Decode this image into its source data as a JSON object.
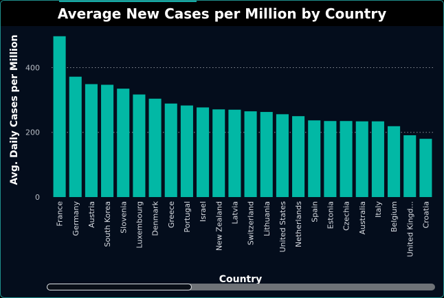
{
  "chart_data": {
    "type": "bar",
    "title": "Average New Cases per Million by Country",
    "xlabel": "Country",
    "ylabel": "Avg. Daily Cases per Million",
    "categories": [
      "France",
      "Germany",
      "Austria",
      "South Korea",
      "Slovenia",
      "Luxembourg",
      "Denmark",
      "Greece",
      "Portugal",
      "Israel",
      "New Zealand",
      "Latvia",
      "Switzerland",
      "Lithuania",
      "United States",
      "Netherlands",
      "Spain",
      "Estonia",
      "Czechia",
      "Australia",
      "Italy",
      "Belgium",
      "United Kingd...",
      "Croatia"
    ],
    "values": [
      497,
      372,
      349,
      347,
      335,
      317,
      304,
      289,
      283,
      277,
      271,
      270,
      265,
      263,
      256,
      250,
      237,
      235,
      235,
      234,
      234,
      219,
      191,
      180
    ],
    "ylim": [
      0,
      505
    ],
    "yticks": [
      0,
      200,
      400
    ],
    "grid": true,
    "bar_color": "#02b8a5",
    "background": "#040d1c"
  },
  "scrollbar": {
    "thumb_fraction": 0.37
  }
}
